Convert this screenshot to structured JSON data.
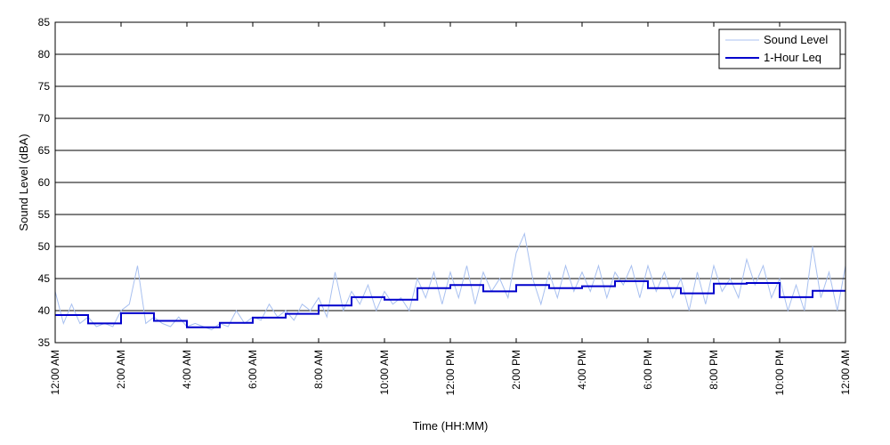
{
  "chart_data": {
    "type": "line",
    "xlabel": "Time (HH:MM)",
    "ylabel": "Sound Level (dBA)",
    "ylim": [
      35,
      85
    ],
    "xlim_hours": [
      0,
      24
    ],
    "y_ticks": [
      35,
      40,
      45,
      50,
      55,
      60,
      65,
      70,
      75,
      80,
      85
    ],
    "x_ticks": [
      {
        "hour": 0,
        "label": "12:00 AM"
      },
      {
        "hour": 2,
        "label": "2:00 AM"
      },
      {
        "hour": 4,
        "label": "4:00 AM"
      },
      {
        "hour": 6,
        "label": "6:00 AM"
      },
      {
        "hour": 8,
        "label": "8:00 AM"
      },
      {
        "hour": 10,
        "label": "10:00 AM"
      },
      {
        "hour": 12,
        "label": "12:00 PM"
      },
      {
        "hour": 14,
        "label": "2:00 PM"
      },
      {
        "hour": 16,
        "label": "4:00 PM"
      },
      {
        "hour": 18,
        "label": "6:00 PM"
      },
      {
        "hour": 20,
        "label": "8:00 PM"
      },
      {
        "hour": 22,
        "label": "10:00 PM"
      },
      {
        "hour": 24,
        "label": "12:00 AM"
      }
    ],
    "grid": "horizontal",
    "legend_position": "top-right",
    "series": [
      {
        "name": "Sound Level",
        "color": "#a8c0f0",
        "style": "thin-line",
        "x": [
          0,
          0.25,
          0.5,
          0.75,
          1,
          1.25,
          1.5,
          1.75,
          2,
          2.25,
          2.5,
          2.75,
          3,
          3.25,
          3.5,
          3.75,
          4,
          4.25,
          4.5,
          4.75,
          5,
          5.25,
          5.5,
          5.75,
          6,
          6.25,
          6.5,
          6.75,
          7,
          7.25,
          7.5,
          7.75,
          8,
          8.25,
          8.5,
          8.75,
          9,
          9.25,
          9.5,
          9.75,
          10,
          10.25,
          10.5,
          10.75,
          11,
          11.25,
          11.5,
          11.75,
          12,
          12.25,
          12.5,
          12.75,
          13,
          13.25,
          13.5,
          13.75,
          14,
          14.25,
          14.5,
          14.75,
          15,
          15.25,
          15.5,
          15.75,
          16,
          16.25,
          16.5,
          16.75,
          17,
          17.25,
          17.5,
          17.75,
          18,
          18.25,
          18.5,
          18.75,
          19,
          19.25,
          19.5,
          19.75,
          20,
          20.25,
          20.5,
          20.75,
          21,
          21.25,
          21.5,
          21.75,
          22,
          22.25,
          22.5,
          22.75,
          23,
          23.25,
          23.5,
          23.75,
          24
        ],
        "y": [
          43,
          38,
          41,
          38,
          39,
          37.5,
          38,
          37.5,
          40,
          41,
          47,
          38,
          39,
          38,
          37.5,
          39,
          37.5,
          38,
          37.5,
          37,
          38,
          37.5,
          40,
          38,
          39,
          38.5,
          41,
          39,
          40,
          38.5,
          41,
          40,
          42,
          39,
          46,
          40,
          43,
          41,
          44,
          40,
          43,
          41,
          42,
          40,
          45,
          42,
          46,
          41,
          46,
          42,
          47,
          41,
          46,
          43,
          45,
          42,
          49,
          52,
          45,
          41,
          46,
          42,
          47,
          43,
          46,
          43,
          47,
          42,
          46,
          44,
          47,
          42,
          47,
          43,
          46,
          42,
          45,
          40,
          46,
          41,
          47,
          43,
          45,
          42,
          48,
          44,
          47,
          42,
          45,
          40,
          44,
          40,
          50,
          42,
          46,
          40,
          47
        ]
      },
      {
        "name": "1-Hour Leq",
        "color": "#0000cc",
        "style": "step",
        "values": [
          39.3,
          38,
          39.6,
          38.4,
          37.4,
          38.1,
          38.9,
          39.5,
          40.8,
          42.1,
          41.7,
          43.5,
          44,
          43,
          44,
          43.5,
          43.8,
          44.6,
          43.5,
          42.7,
          44.2,
          44.3,
          42.1,
          43.1
        ]
      }
    ]
  }
}
